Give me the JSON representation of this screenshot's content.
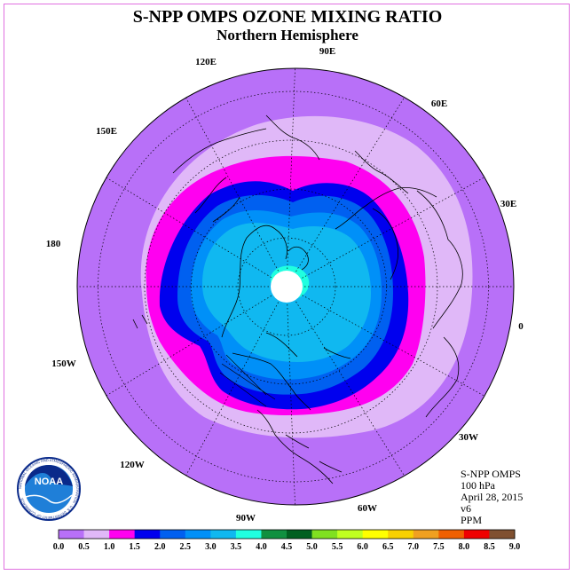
{
  "title": "S-NPP OMPS OZONE MIXING RATIO",
  "subtitle": "Northern Hemisphere",
  "info": {
    "product": "S-NPP OMPS",
    "level": "100 hPa",
    "date": "April 28, 2015",
    "version": "v6",
    "units": "PPM"
  },
  "longitude_labels": [
    "90E",
    "60E",
    "30E",
    "0",
    "30W",
    "60W",
    "90W",
    "120W",
    "150W",
    "180",
    "150E",
    "120E"
  ],
  "logo": {
    "text": "NOAA",
    "ring_text": "NATIONAL OCEANIC AND ATMOSPHERIC ADMINISTRATION · U.S. DEPARTMENT OF COMMERCE"
  },
  "colorbar": {
    "ticks": [
      "0.0",
      "0.5",
      "1.0",
      "1.5",
      "2.0",
      "2.5",
      "3.0",
      "3.5",
      "4.0",
      "4.5",
      "5.0",
      "5.5",
      "6.0",
      "6.5",
      "7.0",
      "7.5",
      "8.0",
      "8.5",
      "9.0"
    ],
    "colors": [
      "#b870f8",
      "#e0b8f8",
      "#ff00f0",
      "#0000ee",
      "#0060f0",
      "#0090f8",
      "#10b8f0",
      "#20ffe0",
      "#109040",
      "#006020",
      "#80e020",
      "#c0ff20",
      "#ffff00",
      "#f8d000",
      "#f0a020",
      "#f06000",
      "#f00000",
      "#805030"
    ]
  },
  "map_colors": {
    "c0_0": "#b870f8",
    "c0_5": "#e0b8f8",
    "c1_0": "#ff00f0",
    "c1_5": "#0000ee",
    "c2_0": "#0060f0",
    "c2_5": "#0090f8",
    "c3_0": "#10b8f0",
    "c3_5": "#20ffe0"
  }
}
